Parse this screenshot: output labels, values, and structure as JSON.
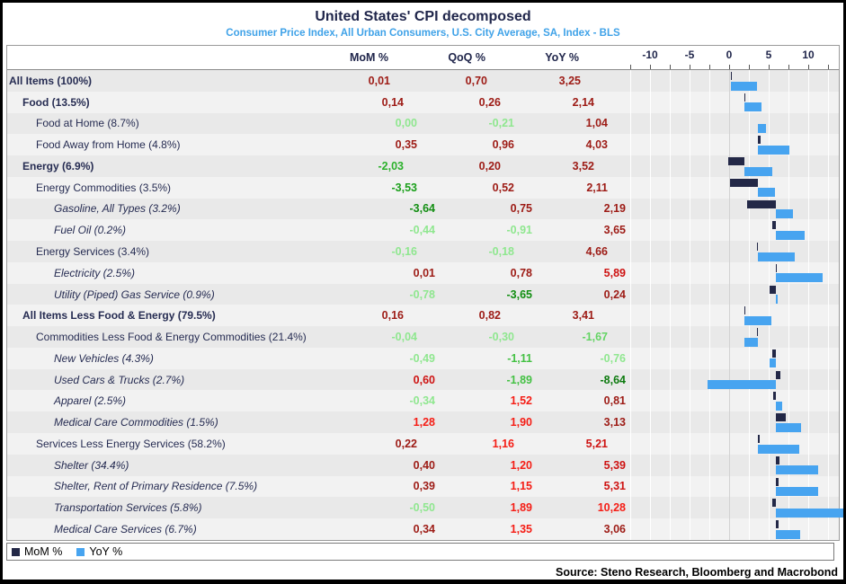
{
  "header": {
    "title": "United States' CPI decomposed",
    "subtitle": "Consumer Price Index, All Urban Consumers, U.S. City Average, SA, Index - BLS"
  },
  "columns": {
    "mom": "MoM %",
    "qoq": "QoQ %",
    "yoy": "YoY %"
  },
  "legend": [
    {
      "label": "MoM %",
      "color": "#232847"
    },
    {
      "label": "YoY %",
      "color": "#47A4F0"
    }
  ],
  "footer": {
    "source": "Source: Steno Research, Bloomberg and Macrobond"
  },
  "rows": [
    {
      "label": "All Items (100%)",
      "indent": 0,
      "bold": true,
      "italic": false,
      "mom": {
        "t": "0,01",
        "c": "#9D1B15"
      },
      "qoq": {
        "t": "0,70",
        "c": "#9D1B15"
      },
      "yoy": {
        "t": "3,25",
        "c": "#9D1B15"
      }
    },
    {
      "label": "Food (13.5%)",
      "indent": 1,
      "bold": true,
      "italic": false,
      "mom": {
        "t": "0,14",
        "c": "#9D1B15"
      },
      "qoq": {
        "t": "0,26",
        "c": "#9D1B15"
      },
      "yoy": {
        "t": "2,14",
        "c": "#9D1B15"
      }
    },
    {
      "label": "Food at Home (8.7%)",
      "indent": 2,
      "bold": false,
      "italic": false,
      "mom": {
        "t": "0,00",
        "c": "#8FE78F"
      },
      "qoq": {
        "t": "-0,21",
        "c": "#8FE78F"
      },
      "yoy": {
        "t": "1,04",
        "c": "#9D1B15"
      }
    },
    {
      "label": "Food Away from Home (4.8%)",
      "indent": 2,
      "bold": false,
      "italic": false,
      "mom": {
        "t": "0,35",
        "c": "#9D1B15"
      },
      "qoq": {
        "t": "0,96",
        "c": "#9D1B15"
      },
      "yoy": {
        "t": "4,03",
        "c": "#9D1B15"
      }
    },
    {
      "label": "Energy (6.9%)",
      "indent": 1,
      "bold": true,
      "italic": false,
      "mom": {
        "t": "-2,03",
        "c": "#2BB12B"
      },
      "qoq": {
        "t": "0,20",
        "c": "#9D1B15"
      },
      "yoy": {
        "t": "3,52",
        "c": "#9D1B15"
      }
    },
    {
      "label": "Energy Commodities (3.5%)",
      "indent": 2,
      "bold": false,
      "italic": false,
      "mom": {
        "t": "-3,53",
        "c": "#1CA01C"
      },
      "qoq": {
        "t": "0,52",
        "c": "#9D1B15"
      },
      "yoy": {
        "t": "2,11",
        "c": "#9D1B15"
      }
    },
    {
      "label": "Gasoline, All Types (3.2%)",
      "indent": 3,
      "bold": false,
      "italic": true,
      "mom": {
        "t": "-3,64",
        "c": "#128E12"
      },
      "qoq": {
        "t": "0,75",
        "c": "#9D1B15"
      },
      "yoy": {
        "t": "2,19",
        "c": "#9D1B15"
      }
    },
    {
      "label": "Fuel Oil (0.2%)",
      "indent": 3,
      "bold": false,
      "italic": true,
      "mom": {
        "t": "-0,44",
        "c": "#8FE78F"
      },
      "qoq": {
        "t": "-0,91",
        "c": "#8FE78F"
      },
      "yoy": {
        "t": "3,65",
        "c": "#9D1B15"
      }
    },
    {
      "label": "Energy Services (3.4%)",
      "indent": 2,
      "bold": false,
      "italic": false,
      "mom": {
        "t": "-0,16",
        "c": "#8FE78F"
      },
      "qoq": {
        "t": "-0,18",
        "c": "#8FE78F"
      },
      "yoy": {
        "t": "4,66",
        "c": "#9D1B15"
      }
    },
    {
      "label": "Electricity (2.5%)",
      "indent": 3,
      "bold": false,
      "italic": true,
      "mom": {
        "t": "0,01",
        "c": "#9D1B15"
      },
      "qoq": {
        "t": "0,78",
        "c": "#9D1B15"
      },
      "yoy": {
        "t": "5,89",
        "c": "#CE1312"
      }
    },
    {
      "label": "Utility (Piped) Gas Service (0.9%)",
      "indent": 3,
      "bold": false,
      "italic": true,
      "mom": {
        "t": "-0,78",
        "c": "#8FE78F"
      },
      "qoq": {
        "t": "-3,65",
        "c": "#128E12"
      },
      "yoy": {
        "t": "0,24",
        "c": "#9D1B15"
      }
    },
    {
      "label": "All Items Less Food & Energy (79.5%)",
      "indent": 1,
      "bold": true,
      "italic": false,
      "mom": {
        "t": "0,16",
        "c": "#9D1B15"
      },
      "qoq": {
        "t": "0,82",
        "c": "#9D1B15"
      },
      "yoy": {
        "t": "3,41",
        "c": "#9D1B15"
      }
    },
    {
      "label": "Commodities Less Food & Energy Commodities (21.4%)",
      "indent": 2,
      "bold": false,
      "italic": false,
      "mom": {
        "t": "-0,04",
        "c": "#8FE78F"
      },
      "qoq": {
        "t": "-0,30",
        "c": "#8FE78F"
      },
      "yoy": {
        "t": "-1,67",
        "c": "#63D463"
      }
    },
    {
      "label": "New Vehicles (4.3%)",
      "indent": 3,
      "bold": false,
      "italic": true,
      "mom": {
        "t": "-0,49",
        "c": "#8FE78F"
      },
      "qoq": {
        "t": "-1,11",
        "c": "#44C144"
      },
      "yoy": {
        "t": "-0,76",
        "c": "#8FE78F"
      }
    },
    {
      "label": "Used Cars & Trucks (2.7%)",
      "indent": 3,
      "bold": false,
      "italic": true,
      "mom": {
        "t": "0,60",
        "c": "#CE1312"
      },
      "qoq": {
        "t": "-1,89",
        "c": "#44C144"
      },
      "yoy": {
        "t": "-8,64",
        "c": "#0C7A0E"
      }
    },
    {
      "label": "Apparel (2.5%)",
      "indent": 3,
      "bold": false,
      "italic": true,
      "mom": {
        "t": "-0,34",
        "c": "#8FE78F"
      },
      "qoq": {
        "t": "1,52",
        "c": "#F51D15"
      },
      "yoy": {
        "t": "0,81",
        "c": "#9D1B15"
      }
    },
    {
      "label": "Medical Care Commodities (1.5%)",
      "indent": 3,
      "bold": false,
      "italic": true,
      "mom": {
        "t": "1,28",
        "c": "#F51D15"
      },
      "qoq": {
        "t": "1,90",
        "c": "#F51D15"
      },
      "yoy": {
        "t": "3,13",
        "c": "#9D1B15"
      }
    },
    {
      "label": "Services Less Energy Services (58.2%)",
      "indent": 2,
      "bold": false,
      "italic": false,
      "mom": {
        "t": "0,22",
        "c": "#9D1B15"
      },
      "qoq": {
        "t": "1,16",
        "c": "#F51D15"
      },
      "yoy": {
        "t": "5,21",
        "c": "#CE1312"
      }
    },
    {
      "label": "Shelter (34.4%)",
      "indent": 3,
      "bold": false,
      "italic": true,
      "mom": {
        "t": "0,40",
        "c": "#9D1B15"
      },
      "qoq": {
        "t": "1,20",
        "c": "#F51D15"
      },
      "yoy": {
        "t": "5,39",
        "c": "#CE1312"
      }
    },
    {
      "label": "Shelter, Rent of Primary Residence (7.5%)",
      "indent": 3,
      "bold": false,
      "italic": true,
      "mom": {
        "t": "0,39",
        "c": "#9D1B15"
      },
      "qoq": {
        "t": "1,15",
        "c": "#F51D15"
      },
      "yoy": {
        "t": "5,31",
        "c": "#CE1312"
      }
    },
    {
      "label": "Transportation Services (5.8%)",
      "indent": 3,
      "bold": false,
      "italic": true,
      "mom": {
        "t": "-0,50",
        "c": "#8FE78F"
      },
      "qoq": {
        "t": "1,89",
        "c": "#F51D15"
      },
      "yoy": {
        "t": "10,28",
        "c": "#F51D15"
      }
    },
    {
      "label": "Medical Care Services (6.7%)",
      "indent": 3,
      "bold": false,
      "italic": true,
      "mom": {
        "t": "0,34",
        "c": "#9D1B15"
      },
      "qoq": {
        "t": "1,35",
        "c": "#F51D15"
      },
      "yoy": {
        "t": "3,06",
        "c": "#9D1B15"
      }
    }
  ],
  "chart_data": {
    "type": "bar",
    "orientation": "horizontal",
    "title": "United States' CPI decomposed",
    "subtitle": "Consumer Price Index, All Urban Consumers, U.S. City Average, SA, Index - BLS",
    "categories": [
      "All Items (100%)",
      "Food (13.5%)",
      "Food at Home (8.7%)",
      "Food Away from Home (4.8%)",
      "Energy (6.9%)",
      "Energy Commodities (3.5%)",
      "Gasoline, All Types (3.2%)",
      "Fuel Oil (0.2%)",
      "Energy Services (3.4%)",
      "Electricity (2.5%)",
      "Utility (Piped) Gas Service (0.9%)",
      "All Items Less Food & Energy (79.5%)",
      "Commodities Less Food & Energy Commodities (21.4%)",
      "New Vehicles (4.3%)",
      "Used Cars & Trucks (2.7%)",
      "Apparel (2.5%)",
      "Medical Care Commodities (1.5%)",
      "Services Less Energy Services (58.2%)",
      "Shelter (34.4%)",
      "Shelter, Rent of Primary Residence (7.5%)",
      "Transportation Services (5.8%)",
      "Medical Care Services (6.7%)"
    ],
    "series": [
      {
        "name": "MoM %",
        "color": "#232847",
        "values": [
          0.01,
          0.14,
          0.0,
          0.35,
          -2.03,
          -3.53,
          -3.64,
          -0.44,
          -0.16,
          0.01,
          -0.78,
          0.16,
          -0.04,
          -0.49,
          0.6,
          -0.34,
          1.28,
          0.22,
          0.4,
          0.39,
          -0.5,
          0.34
        ]
      },
      {
        "name": "YoY %",
        "color": "#47A4F0",
        "values": [
          3.25,
          2.14,
          1.04,
          4.03,
          3.52,
          2.11,
          2.19,
          3.65,
          4.66,
          5.89,
          0.24,
          3.41,
          -1.67,
          -0.76,
          -8.64,
          0.81,
          3.13,
          5.21,
          5.39,
          5.31,
          10.28,
          3.06
        ]
      }
    ],
    "xticks": [
      -10,
      -5,
      0,
      5,
      10
    ],
    "xlim": [
      -12.5,
      13.9
    ],
    "grid_step": 2.5,
    "legend_position": "bottom",
    "grid": true
  }
}
